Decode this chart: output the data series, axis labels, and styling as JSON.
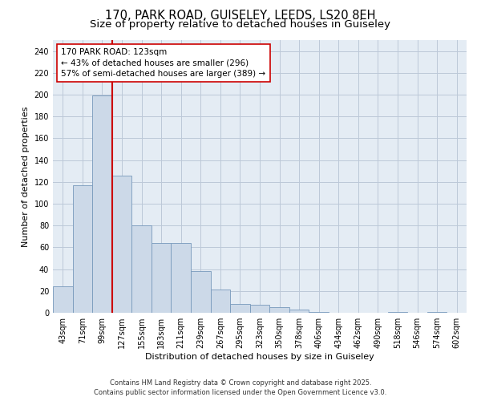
{
  "title1": "170, PARK ROAD, GUISELEY, LEEDS, LS20 8EH",
  "title2": "Size of property relative to detached houses in Guiseley",
  "xlabel": "Distribution of detached houses by size in Guiseley",
  "ylabel": "Number of detached properties",
  "categories": [
    "43sqm",
    "71sqm",
    "99sqm",
    "127sqm",
    "155sqm",
    "183sqm",
    "211sqm",
    "239sqm",
    "267sqm",
    "295sqm",
    "323sqm",
    "350sqm",
    "378sqm",
    "406sqm",
    "434sqm",
    "462sqm",
    "490sqm",
    "518sqm",
    "546sqm",
    "574sqm",
    "602sqm"
  ],
  "values": [
    24,
    117,
    199,
    126,
    80,
    64,
    64,
    38,
    21,
    8,
    7,
    5,
    3,
    1,
    0,
    0,
    0,
    1,
    0,
    1,
    0
  ],
  "bar_color": "#ccd9e8",
  "bar_edge_color": "#7799bb",
  "grid_color": "#bcc8d8",
  "bg_color": "#e4ecf4",
  "ref_line_color": "#cc0000",
  "annotation_text": "170 PARK ROAD: 123sqm\n← 43% of detached houses are smaller (296)\n57% of semi-detached houses are larger (389) →",
  "annotation_box_color": "#ffffff",
  "annotation_box_edge": "#cc0000",
  "ylim": [
    0,
    250
  ],
  "yticks": [
    0,
    20,
    40,
    60,
    80,
    100,
    120,
    140,
    160,
    180,
    200,
    220,
    240
  ],
  "footer": "Contains HM Land Registry data © Crown copyright and database right 2025.\nContains public sector information licensed under the Open Government Licence v3.0.",
  "title_fontsize": 10.5,
  "subtitle_fontsize": 9.5,
  "label_fontsize": 8,
  "tick_fontsize": 7,
  "footer_fontsize": 6,
  "annotation_fontsize": 7.5
}
